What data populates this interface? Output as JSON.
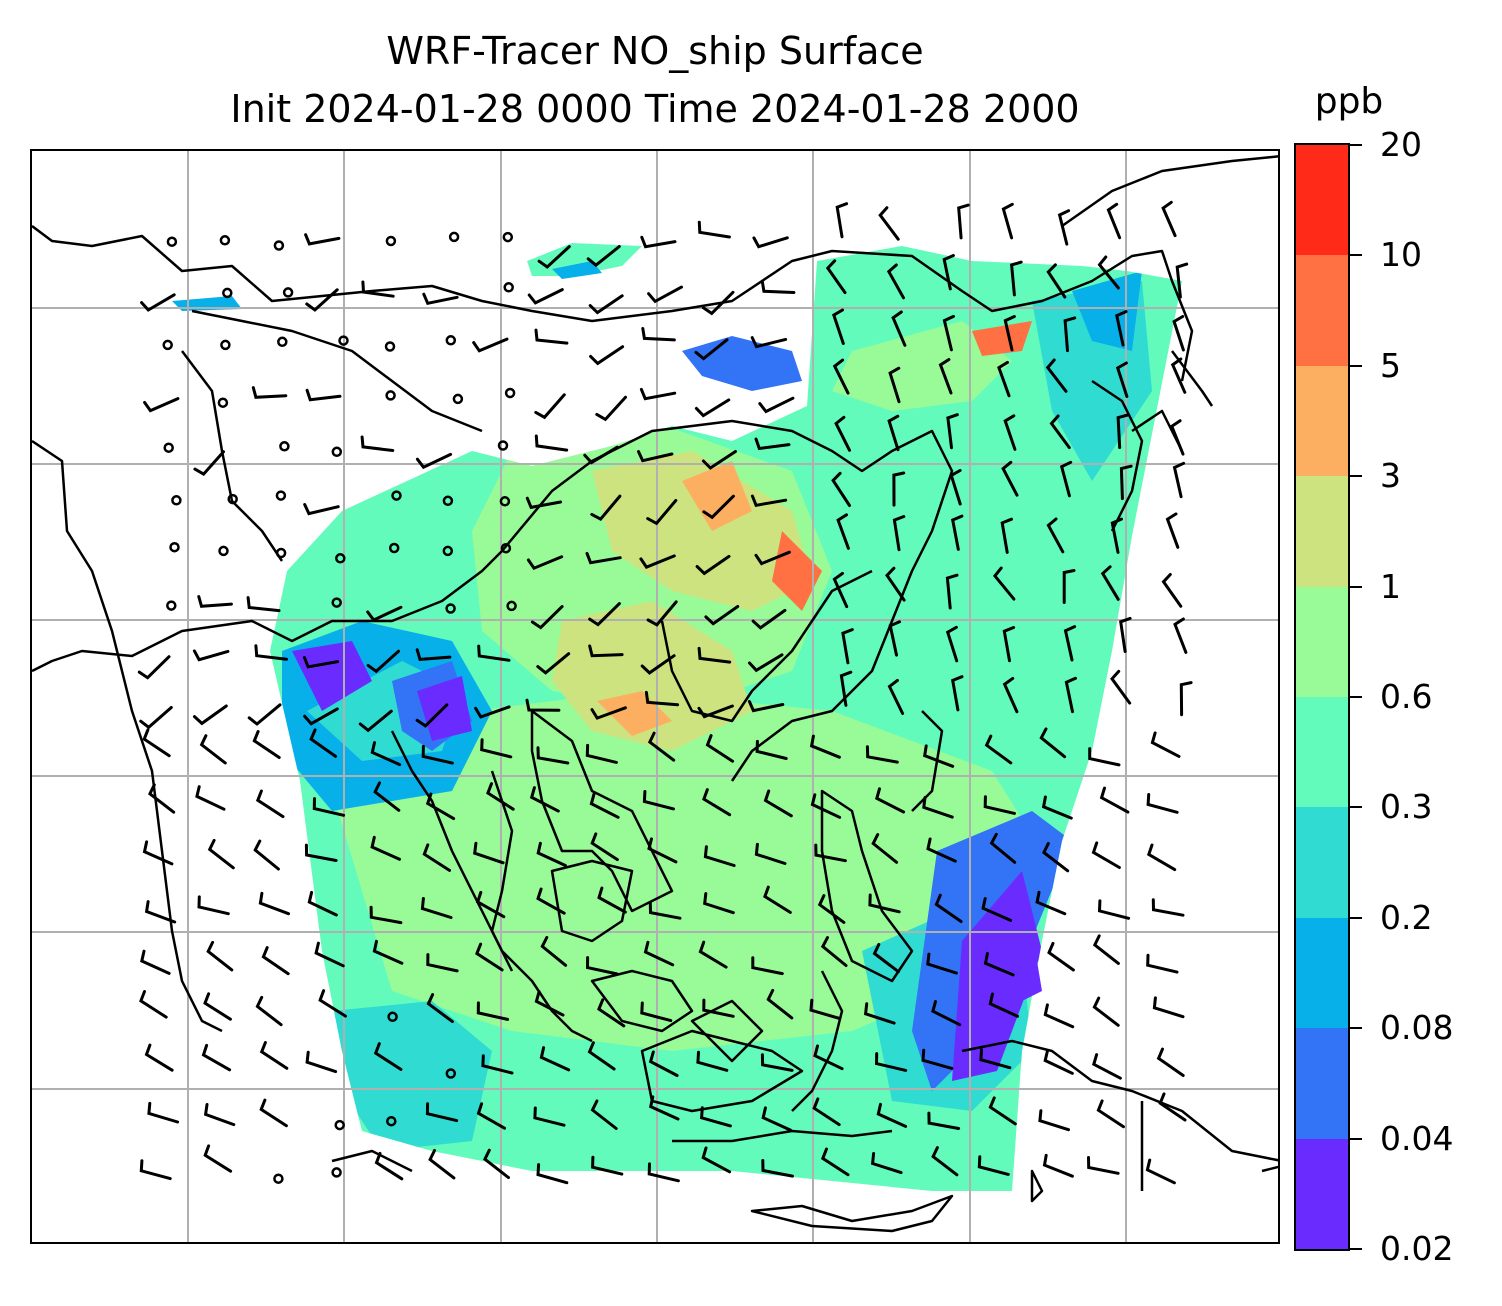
{
  "title": {
    "line1": "WRF-Tracer NO_ship Surface",
    "line2": "Init 2024-01-28 0000 Time 2024-01-28 2000"
  },
  "colorbar": {
    "unit": "ppb",
    "levels": [
      "0.02",
      "0.04",
      "0.08",
      "0.2",
      "0.3",
      "0.6",
      "1",
      "3",
      "5",
      "10",
      "20"
    ],
    "colors": [
      "#6a2bff",
      "#3373f6",
      "#08b0ea",
      "#30dcd2",
      "#63fbbb",
      "#98fb98",
      "#cde37f",
      "#fcaf61",
      "#ff7043",
      "#ff2a17"
    ]
  },
  "map": {
    "field_variable": "NO_ship",
    "level": "Surface",
    "overlays": [
      "coastlines",
      "country-borders",
      "gridlines",
      "wind-barbs"
    ],
    "gridline_color": "#b0b0b0",
    "coastline_color": "#000000"
  }
}
